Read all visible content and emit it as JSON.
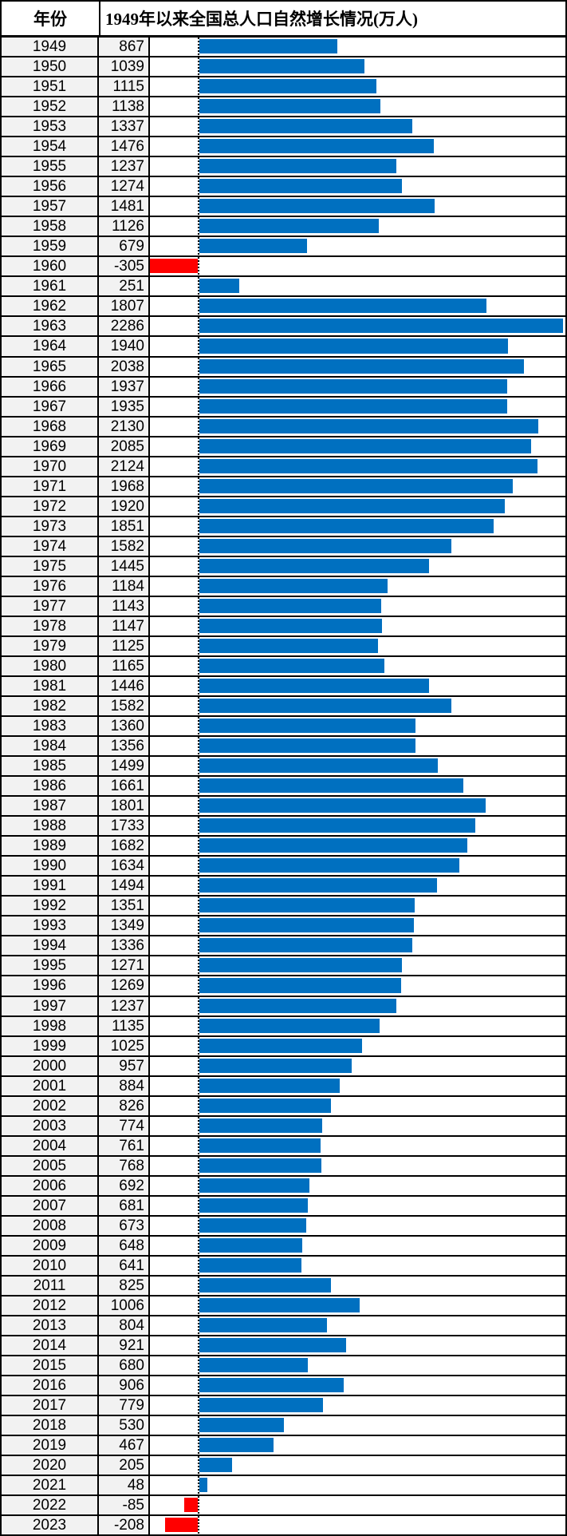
{
  "header": {
    "year_label": "年份",
    "title": "1949年以来全国总人口自然增长情况(万人)"
  },
  "colors": {
    "positive_bar": "#0070C0",
    "negative_bar": "#FF0000",
    "cell_bg": "#F2F2F2",
    "grid": "#000000"
  },
  "chart_data": {
    "type": "bar",
    "orientation": "horizontal",
    "title": "1949年以来全国总人口自然增长情况(万人)",
    "unit": "万人",
    "xlabel": "",
    "ylabel": "年份",
    "xlim": [
      -305,
      2290
    ],
    "baseline": 0,
    "grid": false,
    "legend": "none",
    "categories": [
      "1949",
      "1950",
      "1951",
      "1952",
      "1953",
      "1954",
      "1955",
      "1956",
      "1957",
      "1958",
      "1959",
      "1960",
      "1961",
      "1962",
      "1963",
      "1964",
      "1965",
      "1966",
      "1967",
      "1968",
      "1969",
      "1970",
      "1971",
      "1972",
      "1973",
      "1974",
      "1975",
      "1976",
      "1977",
      "1978",
      "1979",
      "1980",
      "1981",
      "1982",
      "1983",
      "1984",
      "1985",
      "1986",
      "1987",
      "1988",
      "1989",
      "1990",
      "1991",
      "1992",
      "1993",
      "1994",
      "1995",
      "1996",
      "1997",
      "1998",
      "1999",
      "2000",
      "2001",
      "2002",
      "2003",
      "2004",
      "2005",
      "2006",
      "2007",
      "2008",
      "2009",
      "2010",
      "2011",
      "2012",
      "2013",
      "2014",
      "2015",
      "2016",
      "2017",
      "2018",
      "2019",
      "2020",
      "2021",
      "2022",
      "2023"
    ],
    "values": [
      867,
      1039,
      1115,
      1138,
      1337,
      1476,
      1237,
      1274,
      1481,
      1126,
      679,
      -305,
      251,
      1807,
      2286,
      1940,
      2038,
      1937,
      1935,
      2130,
      2085,
      2124,
      1968,
      1920,
      1851,
      1582,
      1445,
      1184,
      1143,
      1147,
      1125,
      1165,
      1446,
      1582,
      1360,
      1356,
      1499,
      1661,
      1801,
      1733,
      1682,
      1634,
      1494,
      1351,
      1349,
      1336,
      1271,
      1269,
      1237,
      1135,
      1025,
      957,
      884,
      826,
      774,
      761,
      768,
      692,
      681,
      673,
      648,
      641,
      825,
      1006,
      804,
      921,
      680,
      906,
      779,
      530,
      467,
      205,
      48,
      -85,
      -208
    ]
  }
}
